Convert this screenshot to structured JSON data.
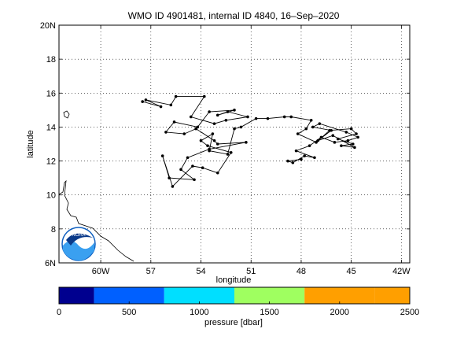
{
  "chart_data": {
    "type": "scatter",
    "title": "WMO ID 4901481, internal ID 4840, 16–Sep–2020",
    "xlabel": "longitude",
    "ylabel": "latitude",
    "xlim": [
      -62.5,
      -41.5
    ],
    "ylim": [
      6,
      20
    ],
    "grid": true,
    "x_ticks": [
      -60,
      -57,
      -54,
      -51,
      -48,
      -45,
      -42
    ],
    "x_tick_labels": [
      "60W",
      "57",
      "54",
      "51",
      "48",
      "45",
      "42W"
    ],
    "y_ticks": [
      6,
      8,
      10,
      12,
      14,
      16,
      18,
      20
    ],
    "y_tick_labels": [
      "6N",
      "8",
      "10",
      "12",
      "14",
      "16",
      "18",
      "20N"
    ],
    "trajectory": {
      "x": [
        -57.5,
        -56.4,
        -57.3,
        -55.8,
        -55.5,
        -53.8,
        -54.6,
        -53.2,
        -52.5,
        -51.2,
        -52.4,
        -53.0,
        -52.0,
        -53.5,
        -54.2,
        -55.6,
        -56.1,
        -55.0,
        -54.3,
        -53.2,
        -53.0,
        -51.3,
        -53.5,
        -54.8,
        -55.2,
        -54.4,
        -55.9,
        -56.3,
        -55.7,
        -54.5,
        -53.9,
        -53.0,
        -52.2,
        -53.6,
        -54.0,
        -53.3,
        -53.5,
        -52.4,
        -52.0,
        -51.6,
        -50.7,
        -50.0,
        -49.0,
        -48.6,
        -47.4,
        -47.7,
        -48.2,
        -47.1,
        -46.3,
        -45.0,
        -44.7,
        -45.8,
        -44.9,
        -45.6,
        -44.8,
        -46.1,
        -47.0,
        -46.2,
        -47.3,
        -46.9,
        -45.3,
        -44.6,
        -45.2,
        -46.0,
        -46.8,
        -47.5,
        -48.3,
        -47.2,
        -47.8,
        -48.5,
        -48.8,
        -48.0
      ],
      "y": [
        15.5,
        15.2,
        15.6,
        15.3,
        15.8,
        15.8,
        14.6,
        14.2,
        14.4,
        14.6,
        14.9,
        14.7,
        15.0,
        14.9,
        14.0,
        14.3,
        13.7,
        13.6,
        13.9,
        13.2,
        13.0,
        13.1,
        12.7,
        12.2,
        11.5,
        10.9,
        11.0,
        12.3,
        10.5,
        11.7,
        11.6,
        11.3,
        12.5,
        12.9,
        13.2,
        13.6,
        12.6,
        12.4,
        13.9,
        14.0,
        14.5,
        14.5,
        14.6,
        14.6,
        14.4,
        13.9,
        13.6,
        13.1,
        13.8,
        13.9,
        13.6,
        13.3,
        13.0,
        12.9,
        12.8,
        13.5,
        13.2,
        13.8,
        14.0,
        14.2,
        13.7,
        13.4,
        13.2,
        13.1,
        13.4,
        12.9,
        12.6,
        12.2,
        12.3,
        11.9,
        12.0,
        12.1
      ]
    },
    "colorbar": {
      "label": "pressure [dbar]",
      "tick_labels": [
        "0",
        "500",
        "1000",
        "1500",
        "2000",
        "2500"
      ],
      "range": [
        0,
        2500
      ],
      "bins": [
        {
          "from": 0,
          "to": 250,
          "color": "#00008f"
        },
        {
          "from": 250,
          "to": 750,
          "color": "#0060ff"
        },
        {
          "from": 750,
          "to": 1250,
          "color": "#00dfff"
        },
        {
          "from": 1250,
          "to": 1750,
          "color": "#9fff60"
        },
        {
          "from": 1750,
          "to": 2250,
          "color": "#ff9f00"
        },
        {
          "from": 2250,
          "to": 2500,
          "color": "#ff9f00"
        }
      ]
    }
  },
  "logo": {
    "text": "NOAA",
    "icon": "noaa-logo"
  }
}
